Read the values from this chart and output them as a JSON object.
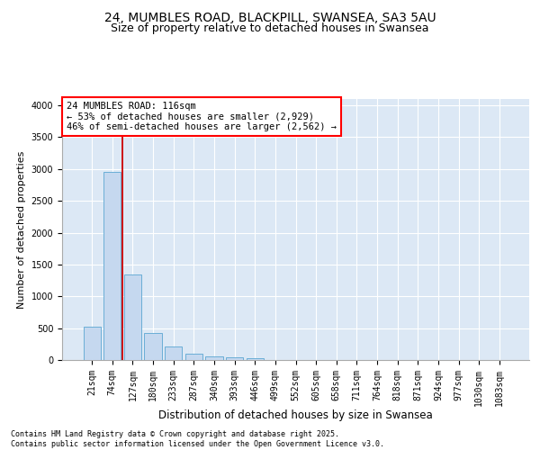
{
  "title1": "24, MUMBLES ROAD, BLACKPILL, SWANSEA, SA3 5AU",
  "title2": "Size of property relative to detached houses in Swansea",
  "xlabel": "Distribution of detached houses by size in Swansea",
  "ylabel": "Number of detached properties",
  "bar_labels": [
    "21sqm",
    "74sqm",
    "127sqm",
    "180sqm",
    "233sqm",
    "287sqm",
    "340sqm",
    "393sqm",
    "446sqm",
    "499sqm",
    "552sqm",
    "605sqm",
    "658sqm",
    "711sqm",
    "764sqm",
    "818sqm",
    "871sqm",
    "924sqm",
    "977sqm",
    "1030sqm",
    "1083sqm"
  ],
  "bar_values": [
    520,
    2960,
    1350,
    430,
    210,
    100,
    50,
    45,
    30,
    0,
    0,
    0,
    0,
    0,
    0,
    0,
    0,
    0,
    0,
    0,
    0
  ],
  "bar_color": "#c5d8ef",
  "bar_edgecolor": "#6aaed6",
  "annotation_text": "24 MUMBLES ROAD: 116sqm\n← 53% of detached houses are smaller (2,929)\n46% of semi-detached houses are larger (2,562) →",
  "vline_color": "#cc0000",
  "vline_x": 1.5,
  "ylim": [
    0,
    4100
  ],
  "yticks": [
    0,
    500,
    1000,
    1500,
    2000,
    2500,
    3000,
    3500,
    4000
  ],
  "background_color": "#dce8f5",
  "grid_color": "#c0d0e8",
  "footer_text": "Contains HM Land Registry data © Crown copyright and database right 2025.\nContains public sector information licensed under the Open Government Licence v3.0.",
  "title1_fontsize": 10,
  "title2_fontsize": 9,
  "xlabel_fontsize": 8.5,
  "ylabel_fontsize": 8,
  "tick_fontsize": 7,
  "annotation_fontsize": 7.5,
  "footer_fontsize": 6
}
